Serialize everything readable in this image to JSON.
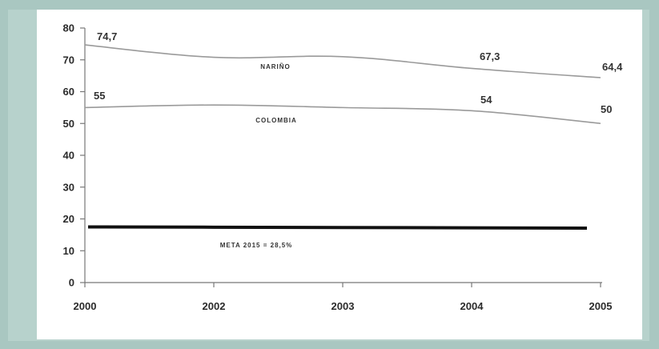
{
  "chart_data": {
    "type": "line",
    "title": "",
    "xlabel": "",
    "ylabel": "",
    "categories": [
      "2000",
      "2002",
      "2003",
      "2004",
      "2005"
    ],
    "ylim": [
      0,
      80
    ],
    "yticks": [
      "0",
      "10",
      "20",
      "30",
      "40",
      "50",
      "60",
      "70",
      "80"
    ],
    "grid": false,
    "legend": "none",
    "series": [
      {
        "name": "NARIÑO",
        "values": [
          74.7,
          70.8,
          71,
          67.3,
          64.4
        ],
        "labels": [
          "74,7",
          "",
          "",
          "67,3",
          "64,4"
        ],
        "color": "#9a9a9a"
      },
      {
        "name": "COLOMBIA",
        "values": [
          55,
          55.8,
          55,
          54,
          50
        ],
        "labels": [
          "55",
          "",
          "",
          "54",
          "50"
        ],
        "color": "#9a9a9a"
      },
      {
        "name": "META 2015 = 28,5%",
        "values": [
          17.5,
          17.4,
          17.3,
          17.2,
          17.1
        ],
        "labels": [
          "",
          "",
          "",
          "",
          ""
        ],
        "color": "#111111"
      }
    ]
  }
}
